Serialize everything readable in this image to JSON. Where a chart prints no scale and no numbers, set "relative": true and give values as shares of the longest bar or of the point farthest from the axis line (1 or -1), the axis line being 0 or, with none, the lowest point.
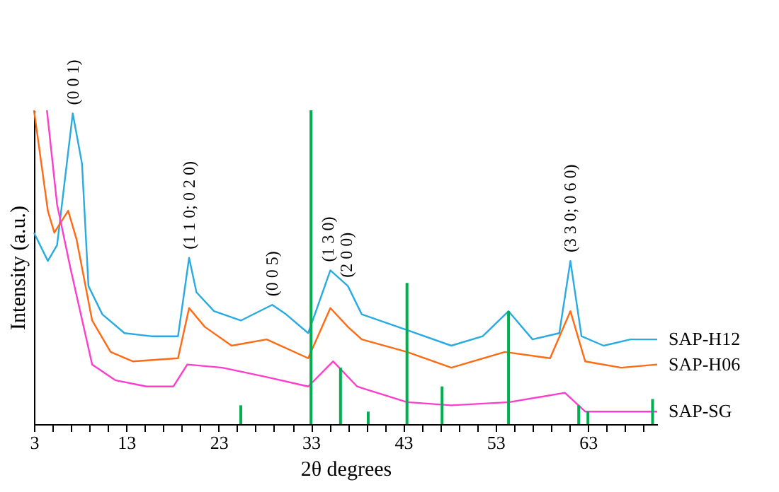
{
  "chart_data": {
    "type": "line",
    "relative": true,
    "xlabel": "2θ degrees",
    "ylabel": "Intensity (a.u.)",
    "xlim": [
      3,
      70.5
    ],
    "xticks": [
      3,
      {
        "value": 5,
        "label": null
      },
      {
        "value": 7,
        "label": null
      },
      {
        "value": 9,
        "label": null
      },
      {
        "value": 11,
        "label": null
      },
      13,
      {
        "value": 15,
        "label": null
      },
      {
        "value": 17,
        "label": null
      },
      {
        "value": 19,
        "label": null
      },
      {
        "value": 21,
        "label": null
      },
      23,
      {
        "value": 25,
        "label": null
      },
      {
        "value": 27,
        "label": null
      },
      {
        "value": 29,
        "label": null
      },
      {
        "value": 31,
        "label": null
      },
      33,
      {
        "value": 35,
        "label": null
      },
      {
        "value": 37,
        "label": null
      },
      {
        "value": 39,
        "label": null
      },
      {
        "value": 41,
        "label": null
      },
      43,
      {
        "value": 45,
        "label": null
      },
      {
        "value": 47,
        "label": null
      },
      {
        "value": 49,
        "label": null
      },
      {
        "value": 51,
        "label": null
      },
      53,
      {
        "value": 55,
        "label": null
      },
      {
        "value": 57,
        "label": null
      },
      {
        "value": 59,
        "label": null
      },
      {
        "value": 61,
        "label": null
      },
      63,
      {
        "value": 65,
        "label": null
      },
      {
        "value": 67,
        "label": null
      },
      {
        "value": 69,
        "label": null
      }
    ],
    "grid": false,
    "legend": false,
    "marker": "none",
    "line_style": "solid",
    "series": [
      {
        "name": "SAP-H12",
        "color": "#29abe2",
        "x": [
          3.0,
          4.5,
          5.5,
          7.2,
          8.2,
          8.9,
          10.4,
          12.8,
          15.7,
          18.6,
          19.8,
          20.6,
          22.5,
          25.4,
          28.8,
          30.3,
          32.7,
          35.1,
          37.0,
          38.5,
          43.4,
          48.2,
          51.6,
          54.4,
          57.0,
          59.9,
          61.1,
          62.3,
          64.7,
          67.6,
          70.5
        ],
        "values": [
          0.61,
          0.52,
          0.57,
          0.99,
          0.83,
          0.44,
          0.35,
          0.29,
          0.28,
          0.28,
          0.53,
          0.42,
          0.36,
          0.33,
          0.38,
          0.35,
          0.29,
          0.49,
          0.44,
          0.35,
          0.3,
          0.25,
          0.28,
          0.36,
          0.27,
          0.29,
          0.52,
          0.28,
          0.25,
          0.27,
          0.27
        ]
      },
      {
        "name": "SAP-H06",
        "color": "#ff6a13",
        "x": [
          3.0,
          4.5,
          5.2,
          6.7,
          7.6,
          9.3,
          11.3,
          13.7,
          18.6,
          19.8,
          21.5,
          24.4,
          28.2,
          32.7,
          35.1,
          37.0,
          38.5,
          43.4,
          48.2,
          54.0,
          58.9,
          61.1,
          62.7,
          66.6,
          70.5
        ],
        "values": [
          1.0,
          0.68,
          0.61,
          0.68,
          0.59,
          0.33,
          0.23,
          0.2,
          0.21,
          0.37,
          0.31,
          0.25,
          0.27,
          0.21,
          0.37,
          0.31,
          0.27,
          0.23,
          0.18,
          0.23,
          0.21,
          0.36,
          0.2,
          0.18,
          0.19
        ]
      },
      {
        "name": "SAP-SG",
        "color": "#ff3dcc",
        "x": [
          4.4,
          5.5,
          7.0,
          9.3,
          11.8,
          15.2,
          18.1,
          19.6,
          23.4,
          28.2,
          32.7,
          35.4,
          38.0,
          43.4,
          48.2,
          54.5,
          60.5,
          62.7,
          70.5
        ],
        "values": [
          1.0,
          0.7,
          0.49,
          0.19,
          0.14,
          0.12,
          0.12,
          0.19,
          0.18,
          0.15,
          0.12,
          0.2,
          0.12,
          0.07,
          0.06,
          0.07,
          0.1,
          0.04,
          0.04
        ]
      },
      {
        "type": "bar",
        "color": "#00b050",
        "x": [
          25.4,
          33.0,
          36.2,
          39.2,
          43.4,
          47.2,
          54.4,
          62.0,
          63.0,
          70.0
        ],
        "values": [
          0.06,
          1.0,
          0.18,
          0.04,
          0.45,
          0.12,
          0.36,
          0.06,
          0.04,
          0.08
        ]
      }
    ],
    "annotations": [
      {
        "text": "(0 0 1)",
        "x": 7.2,
        "y": 0.99
      },
      {
        "text": "(1 1 0; 0 2 0)",
        "x": 19.8,
        "y": 0.53
      },
      {
        "text": "(0 0 5)",
        "x": 28.8,
        "y": 0.38
      },
      {
        "text": "(1 3 0)",
        "x": 34.8,
        "y": 0.49
      },
      {
        "text": "(2 0 0)",
        "x": 36.8,
        "y": 0.44
      },
      {
        "text": "(3 3 0; 0 6 0)",
        "x": 61.1,
        "y": 0.52
      }
    ]
  }
}
